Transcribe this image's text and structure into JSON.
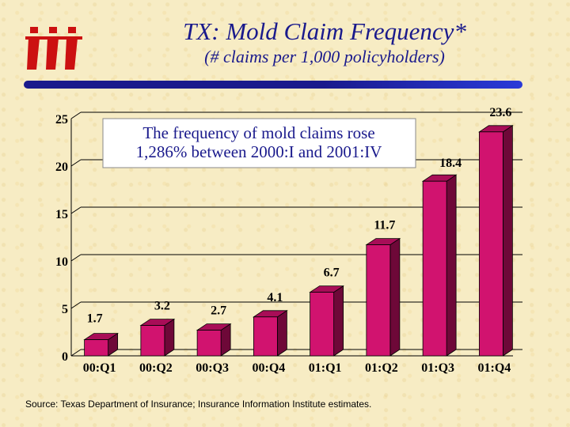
{
  "header": {
    "title": "TX: Mold Claim Frequency*",
    "subtitle": "(# claims per 1,000 policyholders)"
  },
  "annotation": {
    "line1": "The frequency of mold claims rose",
    "line2": "1,286% between  2000:I and 2001:IV"
  },
  "footer": {
    "source": "Source: Texas Department of Insurance; Insurance Information Institute estimates."
  },
  "chart_data": {
    "type": "bar",
    "categories": [
      "00:Q1",
      "00:Q2",
      "00:Q3",
      "00:Q4",
      "01:Q1",
      "01:Q2",
      "01:Q3",
      "01:Q4"
    ],
    "values": [
      1.7,
      3.2,
      2.7,
      4.1,
      6.7,
      11.7,
      18.4,
      23.6
    ],
    "data_labels": [
      "1.7",
      "3.2",
      "2.7",
      "4.1",
      "6.7",
      "11.7",
      "18.4",
      "23.6"
    ],
    "ylim": [
      0,
      25
    ],
    "yticks": [
      0,
      5,
      10,
      15,
      20,
      25
    ],
    "grid": true,
    "colors": {
      "bar_front": "#d1136f",
      "bar_side": "#6e0838",
      "bar_top": "#a80d57",
      "gridline": "#000000"
    }
  },
  "colors": {
    "title": "#1a1a8c",
    "background": "#f7ecc4",
    "logo": "#cc1111"
  }
}
